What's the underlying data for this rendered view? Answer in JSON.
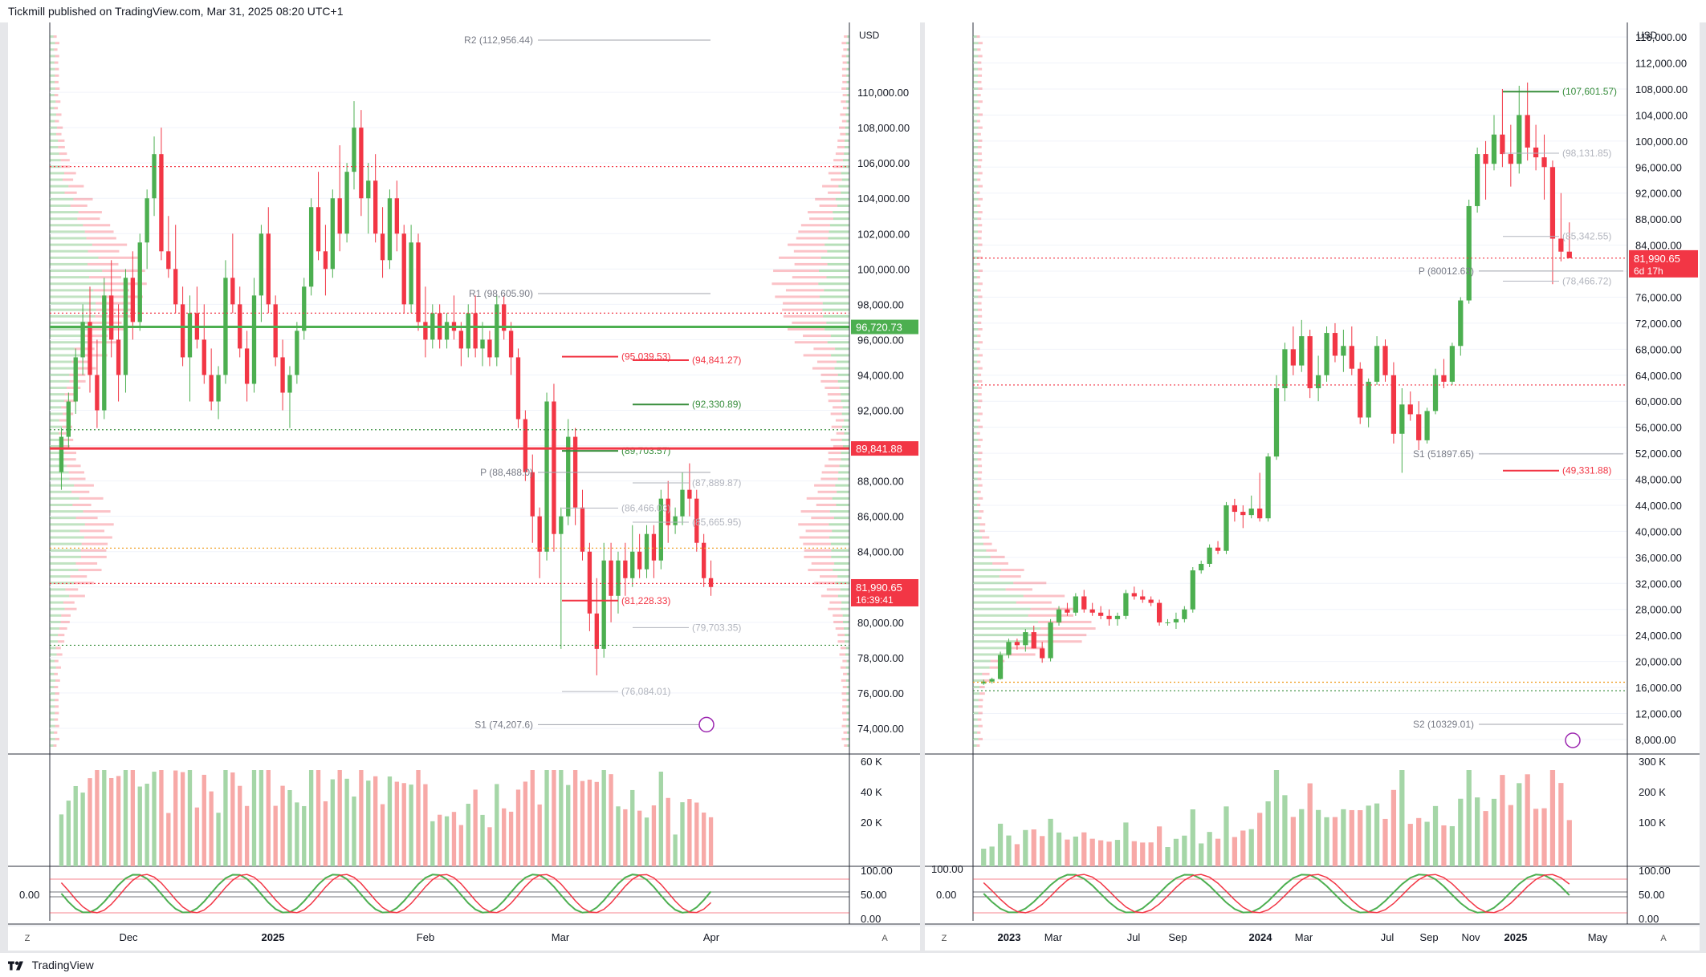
{
  "header": {
    "text": "Tickmill published on TradingView.com, Mar 31, 2025 08:20 UTC+1"
  },
  "footer": {
    "brand": "TradingView"
  },
  "colors": {
    "up": "#4caf50",
    "down": "#f23645",
    "grid": "#f0f3fa",
    "axis_text": "#131722",
    "sma": "#ef9a1a",
    "blue_path": "#2962ff"
  },
  "chart_data": [
    {
      "type": "candlestick",
      "timeframe": "daily",
      "currency": "USD",
      "y_axis": {
        "ylim": [
          73000,
          113500
        ],
        "ticks": [
          "110,000.00",
          "108,000.00",
          "106,000.00",
          "104,000.00",
          "102,000.00",
          "100,000.00",
          "98,000.00",
          "96,000.00",
          "94,000.00",
          "92,000.00",
          "90,000.00",
          "88,000.00",
          "86,000.00",
          "84,000.00",
          "82,000.00",
          "80,000.00",
          "78,000.00",
          "76,000.00",
          "74,000.00"
        ]
      },
      "x_axis": {
        "labels": [
          "Dec",
          "2025",
          "Feb",
          "Mar",
          "Apr"
        ]
      },
      "last_price": {
        "value": "81,990.65",
        "countdown": "16:39:41"
      },
      "price_tags": [
        {
          "value": "96,720.73",
          "color": "#4caf50"
        },
        {
          "value": "89,841.88",
          "color": "#f23645"
        }
      ],
      "pivot_levels": [
        {
          "label": "R2 (112,956.44)",
          "value": 112956.44
        },
        {
          "label": "R1 (98,605.90)",
          "value": 98605.9
        },
        {
          "label": "P (88,488.0)",
          "value": 88488.0
        },
        {
          "label": "S1 (74,207.6)",
          "value": 74207.6
        }
      ],
      "level_labels": [
        {
          "label": "(94,841.27)",
          "value": 94841.27
        },
        {
          "label": "(95,039.53)",
          "value": 95039.53
        },
        {
          "label": "(92,330.89)",
          "value": 92330.89
        },
        {
          "label": "(89,703.57)",
          "value": 89703.57
        },
        {
          "label": "(87,889.87)",
          "value": 87889.87
        },
        {
          "label": "(86,466.03)",
          "value": 86466.03
        },
        {
          "label": "(85,665.95)",
          "value": 85665.95
        },
        {
          "label": "(81,228.33)",
          "value": 81228.33
        },
        {
          "label": "(79,703.35)",
          "value": 79703.35
        },
        {
          "label": "(76,084.01)",
          "value": 76084.01
        }
      ],
      "candles_approx": [
        [
          88500,
          91000,
          87500,
          90500
        ],
        [
          90500,
          93000,
          89800,
          92500
        ],
        [
          92500,
          95500,
          91800,
          95000
        ],
        [
          95000,
          98000,
          94000,
          97000
        ],
        [
          97000,
          99000,
          93000,
          94000
        ],
        [
          94000,
          96000,
          91000,
          92000
        ],
        [
          92000,
          99500,
          91500,
          98500
        ],
        [
          98500,
          100500,
          95000,
          96000
        ],
        [
          96000,
          98000,
          92500,
          94000
        ],
        [
          94000,
          100000,
          93000,
          99500
        ],
        [
          99500,
          101000,
          96000,
          97000
        ],
        [
          97000,
          102000,
          96500,
          101500
        ],
        [
          101500,
          104500,
          100000,
          104000
        ],
        [
          104000,
          107500,
          103000,
          106500
        ],
        [
          106500,
          108000,
          100500,
          101000
        ],
        [
          101000,
          103000,
          99500,
          100000
        ],
        [
          100000,
          102500,
          97500,
          98000
        ],
        [
          98000,
          99000,
          94500,
          95000
        ],
        [
          95000,
          98500,
          92500,
          97500
        ],
        [
          97500,
          99000,
          95500,
          96000
        ],
        [
          96000,
          98000,
          93500,
          94000
        ],
        [
          94000,
          95500,
          92000,
          92500
        ],
        [
          92500,
          94500,
          91500,
          94000
        ],
        [
          94000,
          100500,
          93500,
          99500
        ],
        [
          99500,
          102000,
          97500,
          98000
        ],
        [
          98000,
          99000,
          95000,
          95500
        ],
        [
          95500,
          96500,
          92500,
          93500
        ],
        [
          93500,
          99500,
          93000,
          98500
        ],
        [
          98500,
          102500,
          97000,
          102000
        ],
        [
          102000,
          103500,
          97500,
          98000
        ],
        [
          98000,
          98500,
          94500,
          95000
        ],
        [
          95000,
          96000,
          92000,
          93000
        ],
        [
          93000,
          94500,
          91000,
          94000
        ],
        [
          94000,
          97000,
          93500,
          96500
        ],
        [
          96500,
          99500,
          96000,
          99000
        ],
        [
          99000,
          104000,
          98500,
          103500
        ],
        [
          103500,
          105500,
          100500,
          101000
        ],
        [
          101000,
          102500,
          98500,
          100000
        ],
        [
          100000,
          104500,
          99500,
          104000
        ],
        [
          104000,
          107000,
          101000,
          102000
        ],
        [
          102000,
          106000,
          101500,
          105500
        ],
        [
          105500,
          109500,
          104500,
          108000
        ],
        [
          108000,
          109000,
          103000,
          104000
        ],
        [
          104000,
          106000,
          102000,
          105000
        ],
        [
          105000,
          106500,
          101500,
          102000
        ],
        [
          102000,
          103500,
          99500,
          100500
        ],
        [
          100500,
          104500,
          100000,
          104000
        ],
        [
          104000,
          105000,
          101000,
          102000
        ],
        [
          102000,
          102500,
          97500,
          98000
        ],
        [
          98000,
          102500,
          97500,
          101500
        ],
        [
          101500,
          102000,
          96500,
          97000
        ],
        [
          97000,
          99000,
          95000,
          96000
        ],
        [
          96000,
          98000,
          95500,
          97500
        ],
        [
          97500,
          98000,
          95500,
          96000
        ],
        [
          96000,
          97500,
          95500,
          97000
        ],
        [
          97000,
          98500,
          96000,
          96500
        ],
        [
          96500,
          97000,
          94500,
          95500
        ],
        [
          95500,
          98000,
          95000,
          97500
        ],
        [
          97500,
          98500,
          95000,
          95500
        ],
        [
          95500,
          97000,
          94500,
          96000
        ],
        [
          96000,
          96500,
          94500,
          95000
        ],
        [
          95000,
          98500,
          94500,
          98000
        ],
        [
          98000,
          98500,
          96000,
          96500
        ],
        [
          96500,
          97000,
          94000,
          95000
        ],
        [
          95000,
          95500,
          91000,
          91500
        ],
        [
          91500,
          92000,
          88000,
          88500
        ],
        [
          88500,
          89500,
          84500,
          86000
        ],
        [
          86000,
          86500,
          82500,
          84000
        ],
        [
          84000,
          93000,
          83500,
          92500
        ],
        [
          92500,
          93500,
          84000,
          85000
        ],
        [
          85000,
          86500,
          78500,
          86000
        ],
        [
          86000,
          91500,
          85500,
          90500
        ],
        [
          90500,
          91000,
          85500,
          86500
        ],
        [
          86500,
          87500,
          83500,
          84000
        ],
        [
          84000,
          84500,
          79500,
          80500
        ],
        [
          80500,
          82500,
          77000,
          78500
        ],
        [
          78500,
          84500,
          78000,
          83500
        ],
        [
          83500,
          84500,
          80000,
          81500
        ],
        [
          81500,
          84000,
          80500,
          83500
        ],
        [
          83500,
          84500,
          81500,
          82500
        ],
        [
          82500,
          85500,
          82000,
          84000
        ],
        [
          84000,
          85000,
          82500,
          83000
        ],
        [
          83000,
          85500,
          82500,
          85000
        ],
        [
          85000,
          85500,
          82500,
          83500
        ],
        [
          83500,
          87500,
          83000,
          87000
        ],
        [
          87000,
          88000,
          84500,
          85500
        ],
        [
          85500,
          86500,
          85000,
          86000
        ],
        [
          86000,
          88500,
          85500,
          87500
        ],
        [
          87500,
          89000,
          86000,
          87000
        ],
        [
          87000,
          87500,
          84000,
          84500
        ],
        [
          84500,
          85000,
          82000,
          82500
        ],
        [
          82500,
          83500,
          81500,
          82000
        ]
      ],
      "volume_axis": {
        "ticks": [
          "60 K",
          "40 K",
          "20 K"
        ]
      },
      "oscillator_axis": {
        "ticks": [
          "100.00",
          "50.00",
          "0.00"
        ],
        "left_label": "0.00"
      }
    },
    {
      "type": "candlestick",
      "timeframe": "weekly",
      "currency": "USD",
      "y_axis": {
        "ylim": [
          7000,
          117000
        ],
        "ticks": [
          "116,000.00",
          "112,000.00",
          "108,000.00",
          "104,000.00",
          "100,000.00",
          "96,000.00",
          "92,000.00",
          "88,000.00",
          "84,000.00",
          "80,000.00",
          "76,000.00",
          "72,000.00",
          "68,000.00",
          "64,000.00",
          "60,000.00",
          "56,000.00",
          "52,000.00",
          "48,000.00",
          "44,000.00",
          "40,000.00",
          "36,000.00",
          "32,000.00",
          "28,000.00",
          "24,000.00",
          "20,000.00",
          "16,000.00",
          "12,000.00",
          "8,000.00"
        ]
      },
      "x_axis": {
        "labels": [
          "2023",
          "Mar",
          "Jul",
          "Sep",
          "2024",
          "Mar",
          "Jul",
          "Sep",
          "Nov",
          "2025",
          "May"
        ]
      },
      "last_price": {
        "value": "81,990.65",
        "countdown": "6d 17h"
      },
      "pivot_levels": [
        {
          "label": "P (80012.63)",
          "value": 80012.63
        },
        {
          "label": "S1 (51897.65)",
          "value": 51897.65
        },
        {
          "label": "S2 (10329.01)",
          "value": 10329.01
        }
      ],
      "level_labels": [
        {
          "label": "(107,601.57)",
          "value": 107601.57
        },
        {
          "label": "(98,131.85)",
          "value": 98131.85
        },
        {
          "label": "(85,342.55)",
          "value": 85342.55
        },
        {
          "label": "(78,466.72)",
          "value": 78466.72
        },
        {
          "label": "(49,331.88)",
          "value": 49331.88
        }
      ],
      "candles_approx": [
        [
          16600,
          17200,
          16400,
          16900
        ],
        [
          16900,
          17500,
          16600,
          17300
        ],
        [
          17300,
          21500,
          17200,
          21000
        ],
        [
          21000,
          23500,
          20500,
          23000
        ],
        [
          23000,
          23500,
          21800,
          22500
        ],
        [
          22500,
          25000,
          21500,
          24500
        ],
        [
          24500,
          25500,
          22000,
          22000
        ],
        [
          22000,
          23000,
          19800,
          20500
        ],
        [
          20500,
          26500,
          20000,
          26000
        ],
        [
          26000,
          28500,
          25500,
          28000
        ],
        [
          28000,
          29000,
          27000,
          27500
        ],
        [
          27500,
          30500,
          27000,
          30000
        ],
        [
          30000,
          31000,
          27500,
          28000
        ],
        [
          28000,
          29000,
          27000,
          27500
        ],
        [
          27500,
          28500,
          26500,
          27000
        ],
        [
          27000,
          28000,
          25500,
          26500
        ],
        [
          26500,
          27500,
          25500,
          27000
        ],
        [
          27000,
          31000,
          26500,
          30500
        ],
        [
          30500,
          31500,
          29500,
          30000
        ],
        [
          30000,
          31000,
          29000,
          29500
        ],
        [
          29500,
          30000,
          28500,
          29000
        ],
        [
          29000,
          29500,
          25500,
          26000
        ],
        [
          26000,
          26500,
          25500,
          26000
        ],
        [
          26000,
          27500,
          25000,
          26500
        ],
        [
          26500,
          28500,
          26000,
          28000
        ],
        [
          28000,
          34500,
          27500,
          34000
        ],
        [
          34000,
          35500,
          33500,
          35000
        ],
        [
          35000,
          38000,
          34500,
          37500
        ],
        [
          37500,
          38500,
          36500,
          37000
        ],
        [
          37000,
          44500,
          36500,
          44000
        ],
        [
          44000,
          45000,
          41500,
          43000
        ],
        [
          43000,
          44000,
          40500,
          42500
        ],
        [
          42500,
          45500,
          42000,
          43500
        ],
        [
          43500,
          49000,
          41500,
          42000
        ],
        [
          42000,
          52000,
          41500,
          51500
        ],
        [
          51500,
          64000,
          51000,
          62000
        ],
        [
          62000,
          69000,
          60000,
          68000
        ],
        [
          68000,
          71500,
          64000,
          65500
        ],
        [
          65500,
          72500,
          64500,
          70000
        ],
        [
          70000,
          71000,
          60500,
          62000
        ],
        [
          62000,
          67000,
          60000,
          64000
        ],
        [
          64000,
          71500,
          63000,
          70500
        ],
        [
          70500,
          72000,
          66000,
          67000
        ],
        [
          67000,
          71000,
          64500,
          68500
        ],
        [
          68500,
          71500,
          64000,
          65000
        ],
        [
          65000,
          66000,
          56500,
          57500
        ],
        [
          57500,
          63500,
          56000,
          63000
        ],
        [
          63000,
          70000,
          62500,
          68500
        ],
        [
          68500,
          69500,
          63000,
          64000
        ],
        [
          64000,
          66000,
          53500,
          55000
        ],
        [
          55000,
          62000,
          49000,
          59500
        ],
        [
          59500,
          61500,
          57000,
          58000
        ],
        [
          58000,
          60000,
          52500,
          54000
        ],
        [
          54000,
          59000,
          53500,
          58500
        ],
        [
          58500,
          65000,
          58000,
          64000
        ],
        [
          64000,
          66500,
          62000,
          63000
        ],
        [
          63000,
          69000,
          62500,
          68500
        ],
        [
          68500,
          76000,
          67000,
          75500
        ],
        [
          75500,
          91000,
          75000,
          90000
        ],
        [
          90000,
          99000,
          89000,
          98000
        ],
        [
          98000,
          100000,
          91000,
          96500
        ],
        [
          96500,
          104000,
          95500,
          101000
        ],
        [
          101000,
          108000,
          96000,
          98000
        ],
        [
          98000,
          102500,
          93000,
          96500
        ],
        [
          96500,
          108500,
          95000,
          104000
        ],
        [
          104000,
          109000,
          97000,
          99000
        ],
        [
          99000,
          102500,
          95500,
          97500
        ],
        [
          97500,
          101000,
          91000,
          96000
        ],
        [
          96000,
          97000,
          78000,
          85000
        ],
        [
          85000,
          92000,
          81500,
          83000
        ],
        [
          83000,
          87500,
          82000,
          82000
        ]
      ],
      "volume_axis": {
        "ticks": [
          "300 K",
          "200 K",
          "100 K"
        ]
      },
      "oscillator_axis": {
        "ticks": [
          "100.00",
          "50.00",
          "0.00"
        ],
        "left_label_top": "100.00",
        "left_label": "0.00"
      }
    }
  ]
}
